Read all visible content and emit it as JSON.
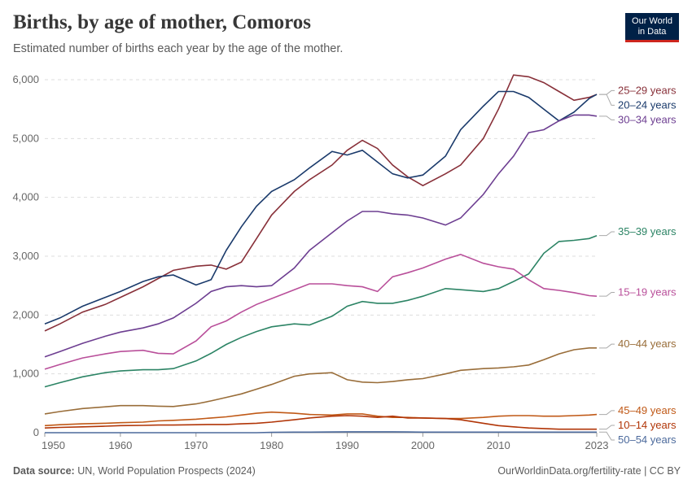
{
  "chart_data": {
    "type": "line",
    "title": "Births, by age of mother, Comoros",
    "subtitle": "Estimated number of births each year by the age of the mother.",
    "source_label": "Data source:",
    "source": "UN, World Population Prospects (2024)",
    "credit": "OurWorldinData.org/fertility-rate | CC BY",
    "logo": [
      "Our World",
      "in Data"
    ],
    "x": [
      1950,
      1952,
      1955,
      1958,
      1960,
      1963,
      1965,
      1967,
      1970,
      1972,
      1974,
      1976,
      1978,
      1980,
      1983,
      1985,
      1988,
      1990,
      1992,
      1994,
      1996,
      1998,
      2000,
      2003,
      2005,
      2008,
      2010,
      2012,
      2014,
      2016,
      2018,
      2020,
      2022,
      2023
    ],
    "xlim": [
      1950,
      2023
    ],
    "xticks": [
      1950,
      1960,
      1970,
      1980,
      1990,
      2000,
      2010,
      2023
    ],
    "ylim": [
      0,
      6000
    ],
    "yticks": [
      0,
      {
        "value": 1000,
        "label": "1,000"
      },
      {
        "value": 2000,
        "label": "2,000"
      },
      {
        "value": 3000,
        "label": "3,000"
      },
      {
        "value": 4000,
        "label": "4,000"
      },
      {
        "value": 5000,
        "label": "5,000"
      },
      {
        "value": 6000,
        "label": "6,000"
      }
    ],
    "grid": true,
    "series": [
      {
        "name": "25–29 years",
        "color": "#883039",
        "values": [
          1730,
          1850,
          2050,
          2180,
          2300,
          2480,
          2620,
          2760,
          2830,
          2850,
          2780,
          2900,
          3300,
          3700,
          4100,
          4300,
          4550,
          4800,
          4970,
          4830,
          4550,
          4350,
          4200,
          4400,
          4550,
          5000,
          5500,
          6080,
          6050,
          5950,
          5800,
          5650,
          5700,
          5750
        ]
      },
      {
        "name": "20–24 years",
        "color": "#1a3a6b",
        "values": [
          1850,
          1950,
          2150,
          2300,
          2400,
          2570,
          2650,
          2680,
          2510,
          2600,
          3100,
          3500,
          3850,
          4100,
          4300,
          4500,
          4780,
          4720,
          4800,
          4600,
          4400,
          4330,
          4380,
          4700,
          5150,
          5550,
          5800,
          5800,
          5700,
          5500,
          5300,
          5450,
          5680,
          5750
        ]
      },
      {
        "name": "30–34 years",
        "color": "#6d3e91",
        "values": [
          1290,
          1380,
          1520,
          1640,
          1710,
          1780,
          1850,
          1950,
          2200,
          2400,
          2480,
          2500,
          2480,
          2500,
          2800,
          3100,
          3400,
          3600,
          3760,
          3760,
          3720,
          3700,
          3650,
          3530,
          3650,
          4050,
          4400,
          4700,
          5100,
          5150,
          5300,
          5400,
          5400,
          5380
        ]
      },
      {
        "name": "35–39 years",
        "color": "#2c8465",
        "values": [
          780,
          850,
          950,
          1020,
          1050,
          1070,
          1070,
          1090,
          1220,
          1350,
          1500,
          1620,
          1720,
          1800,
          1850,
          1830,
          1980,
          2150,
          2230,
          2200,
          2200,
          2250,
          2320,
          2450,
          2430,
          2400,
          2450,
          2570,
          2700,
          3050,
          3250,
          3270,
          3300,
          3350
        ]
      },
      {
        "name": "15–19 years",
        "color": "#b94f9a",
        "values": [
          1080,
          1160,
          1270,
          1340,
          1380,
          1400,
          1350,
          1340,
          1560,
          1800,
          1900,
          2050,
          2180,
          2280,
          2430,
          2530,
          2530,
          2500,
          2480,
          2400,
          2650,
          2720,
          2800,
          2950,
          3030,
          2880,
          2820,
          2780,
          2600,
          2450,
          2420,
          2380,
          2330,
          2320
        ]
      },
      {
        "name": "40–44 years",
        "color": "#996d39",
        "values": [
          320,
          360,
          410,
          440,
          460,
          460,
          450,
          445,
          490,
          540,
          600,
          660,
          740,
          820,
          960,
          1000,
          1020,
          900,
          860,
          850,
          870,
          900,
          920,
          1000,
          1060,
          1090,
          1100,
          1120,
          1150,
          1240,
          1340,
          1410,
          1440,
          1440
        ]
      },
      {
        "name": "45–49 years",
        "color": "#c05917",
        "values": [
          120,
          135,
          150,
          160,
          170,
          180,
          200,
          210,
          230,
          250,
          270,
          300,
          330,
          350,
          330,
          310,
          300,
          320,
          320,
          280,
          260,
          260,
          250,
          240,
          240,
          260,
          280,
          290,
          290,
          280,
          280,
          290,
          300,
          310
        ]
      },
      {
        "name": "10–14 years",
        "color": "#b13507",
        "values": [
          80,
          90,
          100,
          110,
          120,
          125,
          130,
          130,
          135,
          140,
          140,
          150,
          160,
          180,
          220,
          250,
          280,
          290,
          280,
          260,
          280,
          250,
          250,
          240,
          220,
          160,
          120,
          100,
          80,
          70,
          60,
          60,
          60,
          60
        ]
      },
      {
        "name": "50–54 years",
        "color": "#4c6a9c",
        "values": [
          0,
          0,
          0,
          0,
          0,
          0,
          0,
          0,
          0,
          0,
          0,
          0,
          0,
          5,
          10,
          10,
          12,
          15,
          15,
          15,
          15,
          12,
          10,
          10,
          10,
          10,
          10,
          10,
          10,
          10,
          10,
          10,
          10,
          10
        ]
      }
    ]
  }
}
